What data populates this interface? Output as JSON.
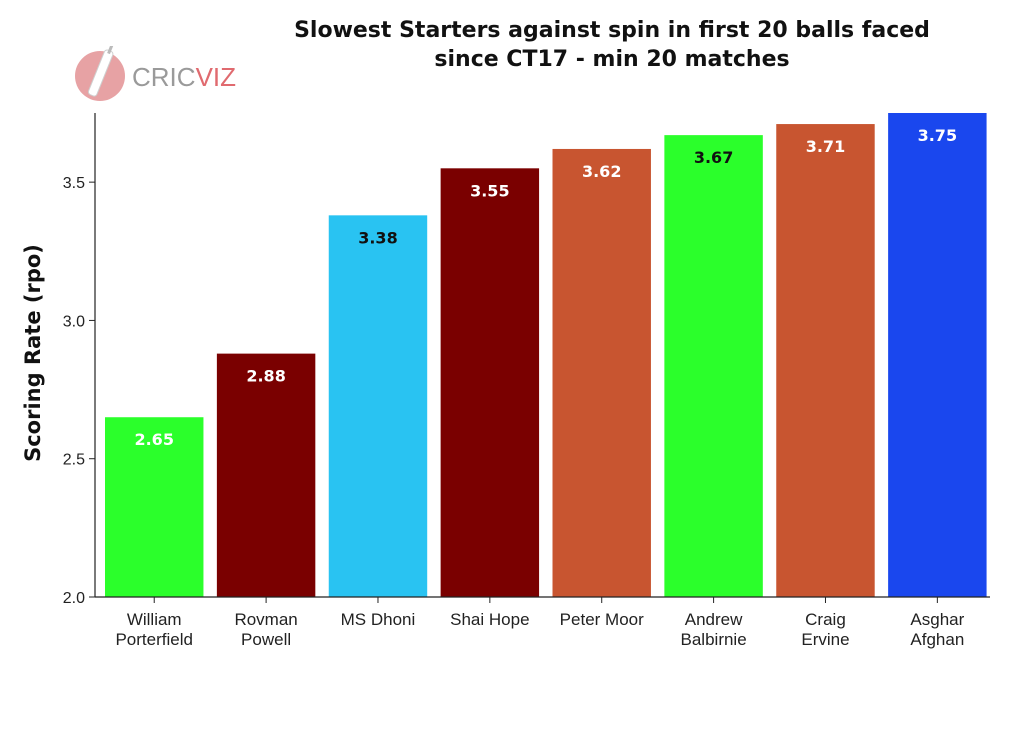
{
  "chart_data": {
    "type": "bar",
    "title_lines": [
      "Slowest Starters against spin in first 20 balls faced",
      "since CT17 - min 20 matches"
    ],
    "xlabel": "",
    "ylabel": "Scoring Rate (rpo)",
    "ylim": [
      2.0,
      3.75
    ],
    "yticks": [
      2.0,
      2.5,
      3.0,
      3.5
    ],
    "ytick_labels": [
      "2.0",
      "2.5",
      "3.0",
      "3.5"
    ],
    "grid": false,
    "categories": [
      [
        "William",
        "Porterfield"
      ],
      [
        "Rovman",
        "Powell"
      ],
      [
        "MS Dhoni"
      ],
      [
        "Shai Hope"
      ],
      [
        "Peter Moor"
      ],
      [
        "Andrew",
        "Balbirnie"
      ],
      [
        "Craig",
        "Ervine"
      ],
      [
        "Asghar",
        "Afghan"
      ]
    ],
    "values": [
      2.65,
      2.88,
      3.38,
      3.55,
      3.62,
      3.67,
      3.71,
      3.75
    ],
    "value_labels": [
      "2.65",
      "2.88",
      "3.38",
      "3.55",
      "3.62",
      "3.67",
      "3.71",
      "3.75"
    ],
    "bar_colors": [
      "#2bff2b",
      "#7a0000",
      "#29c3f2",
      "#7a0000",
      "#c85530",
      "#2bff2b",
      "#c85530",
      "#1a47ee"
    ],
    "label_colors": [
      "#ffffff",
      "#ffffff",
      "#111111",
      "#ffffff",
      "#ffffff",
      "#111111",
      "#ffffff",
      "#ffffff"
    ]
  },
  "logo": {
    "text_a": "CRIC",
    "text_b": "VIZ",
    "icon": "cricket-bat-ball-icon"
  }
}
